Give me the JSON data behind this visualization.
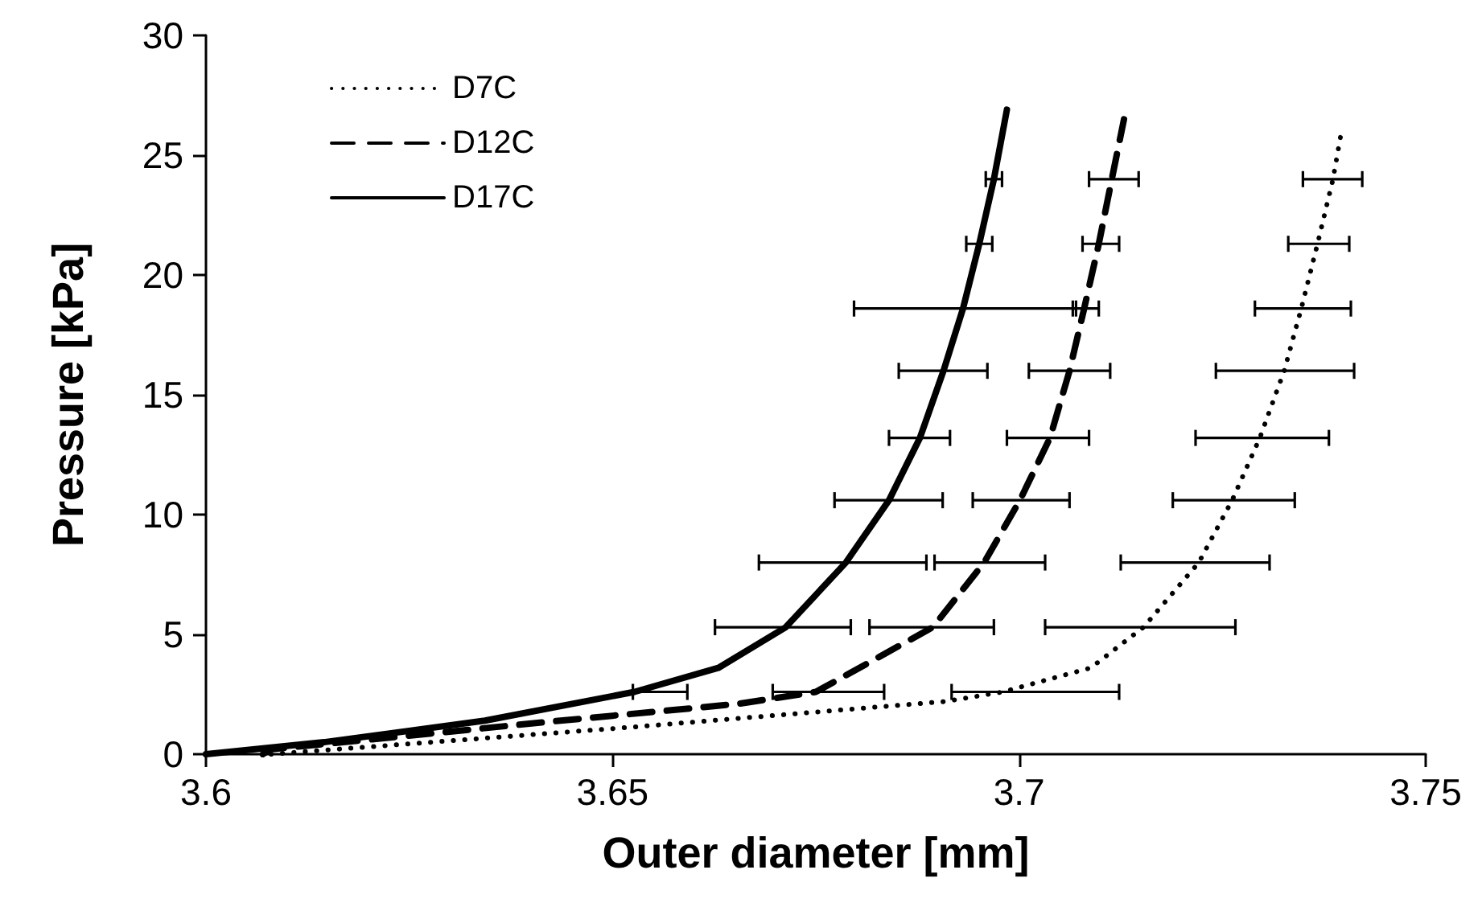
{
  "chart_data": {
    "type": "line",
    "xlabel": "Outer diameter [mm]",
    "ylabel": "Pressure [kPa]",
    "xlim": [
      3.6,
      3.75
    ],
    "xticks": [
      3.6,
      3.65,
      3.7,
      3.75
    ],
    "ylim": [
      0,
      30
    ],
    "yticks": [
      0,
      5,
      10,
      15,
      20,
      25,
      30
    ],
    "grid": false,
    "legend": "top left",
    "marker": "none",
    "series": [
      {
        "name": "D7C",
        "color": "#000000",
        "line_style": "dotted",
        "x": [
          3.608,
          3.6277,
          3.6513,
          3.6765,
          3.6909,
          3.698,
          3.7088,
          3.7153,
          3.7221,
          3.7262,
          3.7296,
          3.7326,
          3.7347,
          3.7367,
          3.7386,
          3.7397
        ],
        "values": [
          0,
          0.5,
          1.1,
          1.8,
          2.2,
          2.6,
          3.6,
          5.3,
          8,
          10.6,
          13.2,
          16,
          18.6,
          21.3,
          24,
          26.1
        ],
        "xerrors": [
          null,
          null,
          null,
          null,
          null,
          [
            3.6917,
            3.7123
          ],
          null,
          [
            3.7032,
            3.7266
          ],
          [
            3.7125,
            3.7308
          ],
          [
            3.7189,
            3.7339
          ],
          [
            3.7217,
            3.7381
          ],
          [
            3.7242,
            3.7412
          ],
          [
            3.729,
            3.7408
          ],
          [
            3.7331,
            3.7406
          ],
          [
            3.7349,
            3.7422
          ],
          null
        ]
      },
      {
        "name": "D12C",
        "color": "#000000",
        "line_style": "dashed",
        "x": [
          3.607,
          3.6079,
          3.6436,
          3.6654,
          3.675,
          3.6894,
          3.6957,
          3.7001,
          3.7038,
          3.7062,
          3.708,
          3.7098,
          3.7114,
          3.7129
        ],
        "values": [
          0,
          0.2,
          1.4,
          2.1,
          2.6,
          5.3,
          8,
          10.6,
          13.2,
          16,
          18.6,
          21.3,
          24,
          26.5
        ],
        "xerrors": [
          null,
          null,
          null,
          null,
          [
            3.6697,
            3.6834
          ],
          [
            3.6816,
            3.6969
          ],
          [
            3.6896,
            3.7032
          ],
          [
            3.6943,
            3.7062
          ],
          [
            3.6985,
            3.7086
          ],
          [
            3.7012,
            3.7112
          ],
          [
            3.7066,
            3.7098
          ],
          [
            3.7078,
            3.7123
          ],
          [
            3.7086,
            3.7147
          ],
          null
        ]
      },
      {
        "name": "D17C",
        "color": "#000000",
        "line_style": "solid",
        "x": [
          3.6,
          3.6145,
          3.6343,
          3.6527,
          3.663,
          3.6713,
          3.6787,
          3.684,
          3.6878,
          3.6907,
          3.6931,
          3.6951,
          3.6969,
          3.6985
        ],
        "values": [
          0,
          0.5,
          1.4,
          2.6,
          3.6,
          5.3,
          8,
          10.6,
          13.2,
          16,
          18.6,
          21.3,
          24,
          26.9
        ],
        "xerrors": [
          null,
          null,
          null,
          [
            3.6525,
            3.6592
          ],
          null,
          [
            3.6626,
            3.6793
          ],
          [
            3.668,
            3.6886
          ],
          [
            3.6773,
            3.6906
          ],
          [
            3.684,
            3.6915
          ],
          [
            3.6852,
            3.6961
          ],
          [
            3.6797,
            3.707
          ],
          [
            3.6935,
            3.6967
          ],
          [
            3.6959,
            3.6979
          ],
          null
        ]
      }
    ]
  }
}
